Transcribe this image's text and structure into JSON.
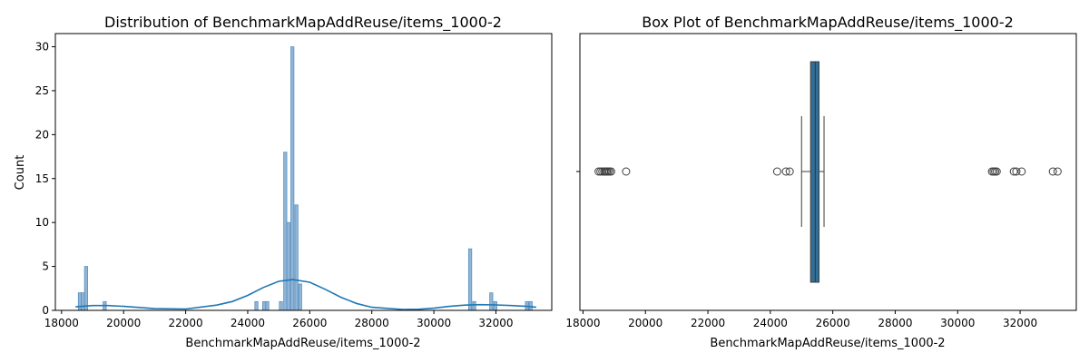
{
  "chart_data": [
    {
      "type": "histogram",
      "title": "Distribution of BenchmarkMapAddReuse/items_1000-2",
      "xlabel": "BenchmarkMapAddReuse/items_1000-2",
      "ylabel": "Count",
      "xlim": [
        17800,
        33800
      ],
      "ylim": [
        0,
        31.5
      ],
      "xticks": [
        18000,
        20000,
        22000,
        24000,
        26000,
        28000,
        30000,
        32000
      ],
      "yticks": [
        0,
        5,
        10,
        15,
        20,
        25,
        30
      ],
      "bars": [
        {
          "x0": 18540,
          "x1": 18640,
          "count": 2
        },
        {
          "x0": 18640,
          "x1": 18740,
          "count": 2
        },
        {
          "x0": 18740,
          "x1": 18840,
          "count": 5
        },
        {
          "x0": 19340,
          "x1": 19440,
          "count": 1
        },
        {
          "x0": 24230,
          "x1": 24330,
          "count": 1
        },
        {
          "x0": 24480,
          "x1": 24580,
          "count": 1
        },
        {
          "x0": 24580,
          "x1": 24680,
          "count": 1
        },
        {
          "x0": 25020,
          "x1": 25120,
          "count": 1
        },
        {
          "x0": 25160,
          "x1": 25260,
          "count": 18
        },
        {
          "x0": 25260,
          "x1": 25360,
          "count": 10
        },
        {
          "x0": 25390,
          "x1": 25490,
          "count": 30
        },
        {
          "x0": 25520,
          "x1": 25620,
          "count": 12
        },
        {
          "x0": 25640,
          "x1": 25740,
          "count": 3
        },
        {
          "x0": 31120,
          "x1": 31220,
          "count": 7
        },
        {
          "x0": 31250,
          "x1": 31350,
          "count": 1
        },
        {
          "x0": 31800,
          "x1": 31900,
          "count": 2
        },
        {
          "x0": 31930,
          "x1": 32030,
          "count": 1
        },
        {
          "x0": 32950,
          "x1": 33050,
          "count": 1
        },
        {
          "x0": 33070,
          "x1": 33170,
          "count": 1
        }
      ],
      "kde": {
        "x": [
          18450,
          19000,
          19500,
          20000,
          21000,
          22000,
          23000,
          23500,
          24000,
          24500,
          25000,
          25450,
          26000,
          26500,
          27000,
          27500,
          28000,
          29000,
          29500,
          30000,
          30500,
          31000,
          31500,
          32000,
          32500,
          33000,
          33300
        ],
        "y": [
          0.4,
          0.55,
          0.55,
          0.45,
          0.2,
          0.15,
          0.6,
          1.0,
          1.7,
          2.6,
          3.3,
          3.5,
          3.2,
          2.4,
          1.5,
          0.8,
          0.35,
          0.1,
          0.12,
          0.25,
          0.45,
          0.6,
          0.65,
          0.62,
          0.55,
          0.45,
          0.35
        ]
      },
      "colors": {
        "bar_fill": "#8fb6d6",
        "bar_edge": "#5b8fbf",
        "kde": "#1f77b4"
      }
    },
    {
      "type": "box",
      "title": "Box Plot of BenchmarkMapAddReuse/items_1000-2",
      "xlabel": "BenchmarkMapAddReuse/items_1000-2",
      "xlim": [
        17900,
        33800
      ],
      "xticks": [
        18000,
        20000,
        22000,
        24000,
        26000,
        28000,
        30000,
        32000
      ],
      "box": {
        "whisker_low": 25000,
        "q1": 25290,
        "median": 25440,
        "q3": 25560,
        "whisker_high": 25720
      },
      "outliers": [
        18500,
        18560,
        18620,
        18680,
        18720,
        18760,
        18800,
        18850,
        18900,
        19380,
        24220,
        24500,
        24620,
        31100,
        31150,
        31200,
        31250,
        31800,
        31880,
        32050,
        33050,
        33200
      ],
      "colors": {
        "box_fill": "#2f6f99",
        "line": "#3d3d3d"
      }
    }
  ]
}
